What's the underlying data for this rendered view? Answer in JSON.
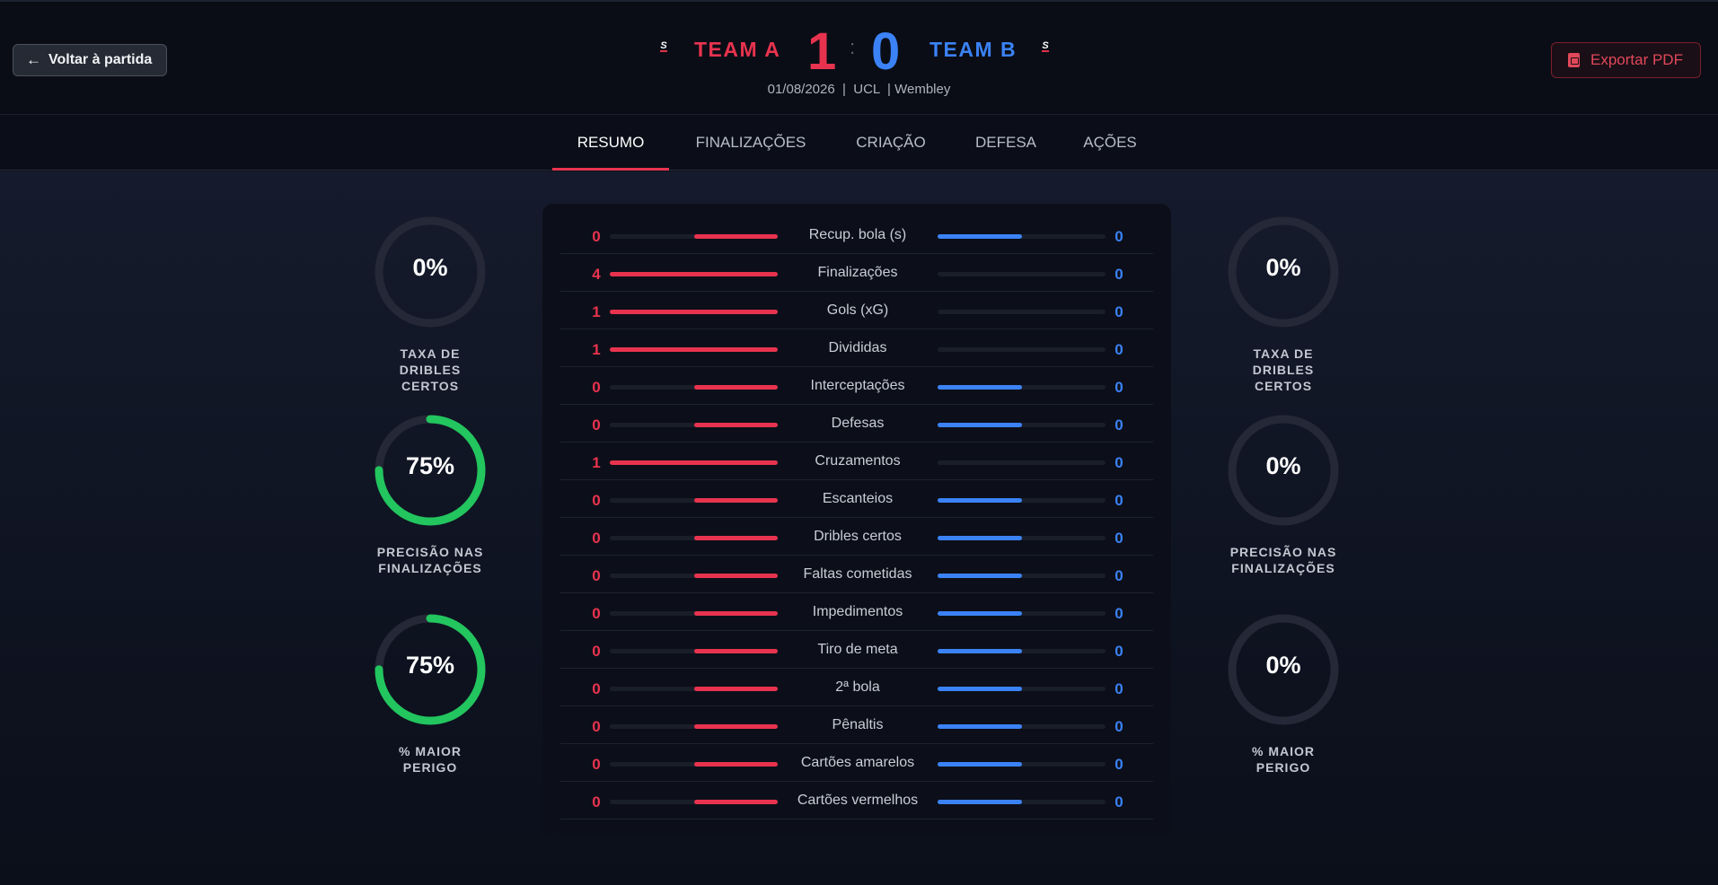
{
  "header": {
    "back_label": "Voltar à partida",
    "export_label": "Exportar PDF",
    "team_a": {
      "name": "TEAM A",
      "score": "1",
      "color": "#e8334f"
    },
    "team_b": {
      "name": "TEAM B",
      "score": "0",
      "color": "#3b82f6"
    },
    "score_separator": ":",
    "logo_text": "S",
    "meta": "01/08/2026  |  UCL  | Wembley"
  },
  "tabs": [
    {
      "label": "RESUMO",
      "active": true
    },
    {
      "label": "FINALIZAÇÕES",
      "active": false
    },
    {
      "label": "CRIAÇÃO",
      "active": false
    },
    {
      "label": "DEFESA",
      "active": false
    },
    {
      "label": "AÇÕES",
      "active": false
    }
  ],
  "gauges_left": [
    {
      "value": 0,
      "display": "0%",
      "label": "TAXA DE DRIBLES CERTOS"
    },
    {
      "value": 75,
      "display": "75%",
      "label": "PRECISÃO NAS FINALIZAÇÕES"
    },
    {
      "value": 75,
      "display": "75%",
      "label": "% MAIOR PERIGO"
    }
  ],
  "gauges_right": [
    {
      "value": 0,
      "display": "0%",
      "label": "TAXA DE DRIBLES CERTOS"
    },
    {
      "value": 0,
      "display": "0%",
      "label": "PRECISÃO NAS FINALIZAÇÕES"
    },
    {
      "value": 0,
      "display": "0%",
      "label": "% MAIOR PERIGO"
    }
  ],
  "gauge_color": "#22c55e",
  "stats": [
    {
      "label": "Recup. bola (s)",
      "a": "0",
      "b": "0",
      "share_a": 0.5,
      "share_b": 0.5
    },
    {
      "label": "Finalizações",
      "a": "4",
      "b": "0",
      "share_a": 1.0,
      "share_b": 0.0
    },
    {
      "label": "Gols (xG)",
      "a": "1",
      "b": "0",
      "share_a": 1.0,
      "share_b": 0.0
    },
    {
      "label": "Divididas",
      "a": "1",
      "b": "0",
      "share_a": 1.0,
      "share_b": 0.0
    },
    {
      "label": "Interceptações",
      "a": "0",
      "b": "0",
      "share_a": 0.5,
      "share_b": 0.5
    },
    {
      "label": "Defesas",
      "a": "0",
      "b": "0",
      "share_a": 0.5,
      "share_b": 0.5
    },
    {
      "label": "Cruzamentos",
      "a": "1",
      "b": "0",
      "share_a": 1.0,
      "share_b": 0.0
    },
    {
      "label": "Escanteios",
      "a": "0",
      "b": "0",
      "share_a": 0.5,
      "share_b": 0.5
    },
    {
      "label": "Dribles certos",
      "a": "0",
      "b": "0",
      "share_a": 0.5,
      "share_b": 0.5
    },
    {
      "label": "Faltas cometidas",
      "a": "0",
      "b": "0",
      "share_a": 0.5,
      "share_b": 0.5
    },
    {
      "label": "Impedimentos",
      "a": "0",
      "b": "0",
      "share_a": 0.5,
      "share_b": 0.5
    },
    {
      "label": "Tiro de meta",
      "a": "0",
      "b": "0",
      "share_a": 0.5,
      "share_b": 0.5
    },
    {
      "label": "2ª bola",
      "a": "0",
      "b": "0",
      "share_a": 0.5,
      "share_b": 0.5
    },
    {
      "label": "Pênaltis",
      "a": "0",
      "b": "0",
      "share_a": 0.5,
      "share_b": 0.5
    },
    {
      "label": "Cartões amarelos",
      "a": "0",
      "b": "0",
      "share_a": 0.5,
      "share_b": 0.5
    },
    {
      "label": "Cartões vermelhos",
      "a": "0",
      "b": "0",
      "share_a": 0.5,
      "share_b": 0.5
    }
  ]
}
